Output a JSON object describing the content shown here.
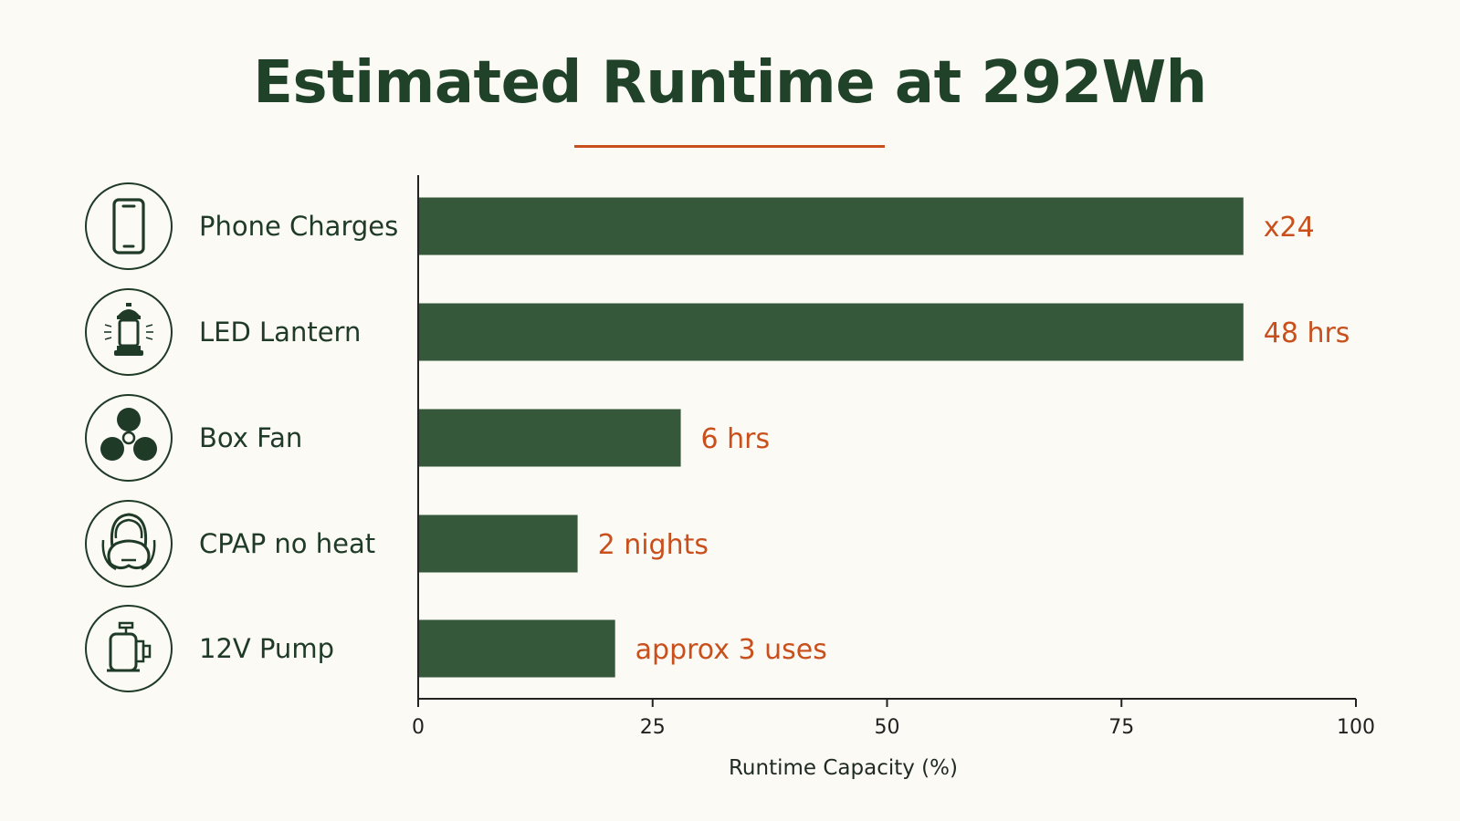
{
  "chart_data": {
    "type": "bar",
    "orientation": "horizontal",
    "title": "Estimated Runtime at 292Wh",
    "xlabel": "Runtime Capacity (%)",
    "ylabel": "",
    "xlim": [
      0,
      100
    ],
    "xticks": [
      "0",
      "25",
      "50",
      "75",
      "100"
    ],
    "grid": false,
    "categories": [
      "Phone Charges",
      "LED Lantern",
      "Box Fan",
      "CPAP no heat",
      "12V Pump"
    ],
    "values": [
      88,
      88,
      28,
      17,
      21
    ],
    "value_labels": [
      "x24",
      "48 hrs",
      "6 hrs",
      "2 nights",
      "approx 3 uses"
    ],
    "icons": [
      "smartphone-icon",
      "lantern-icon",
      "fan-icon",
      "cpap-mask-icon",
      "pump-icon"
    ],
    "colors": {
      "bar": "#35573a",
      "value_label": "#c94f1c",
      "title": "#1f4229",
      "underline": "#c94f1c",
      "axis": "#222222",
      "icon_stroke": "#1f3a27",
      "background": "#fbfaf4"
    }
  }
}
